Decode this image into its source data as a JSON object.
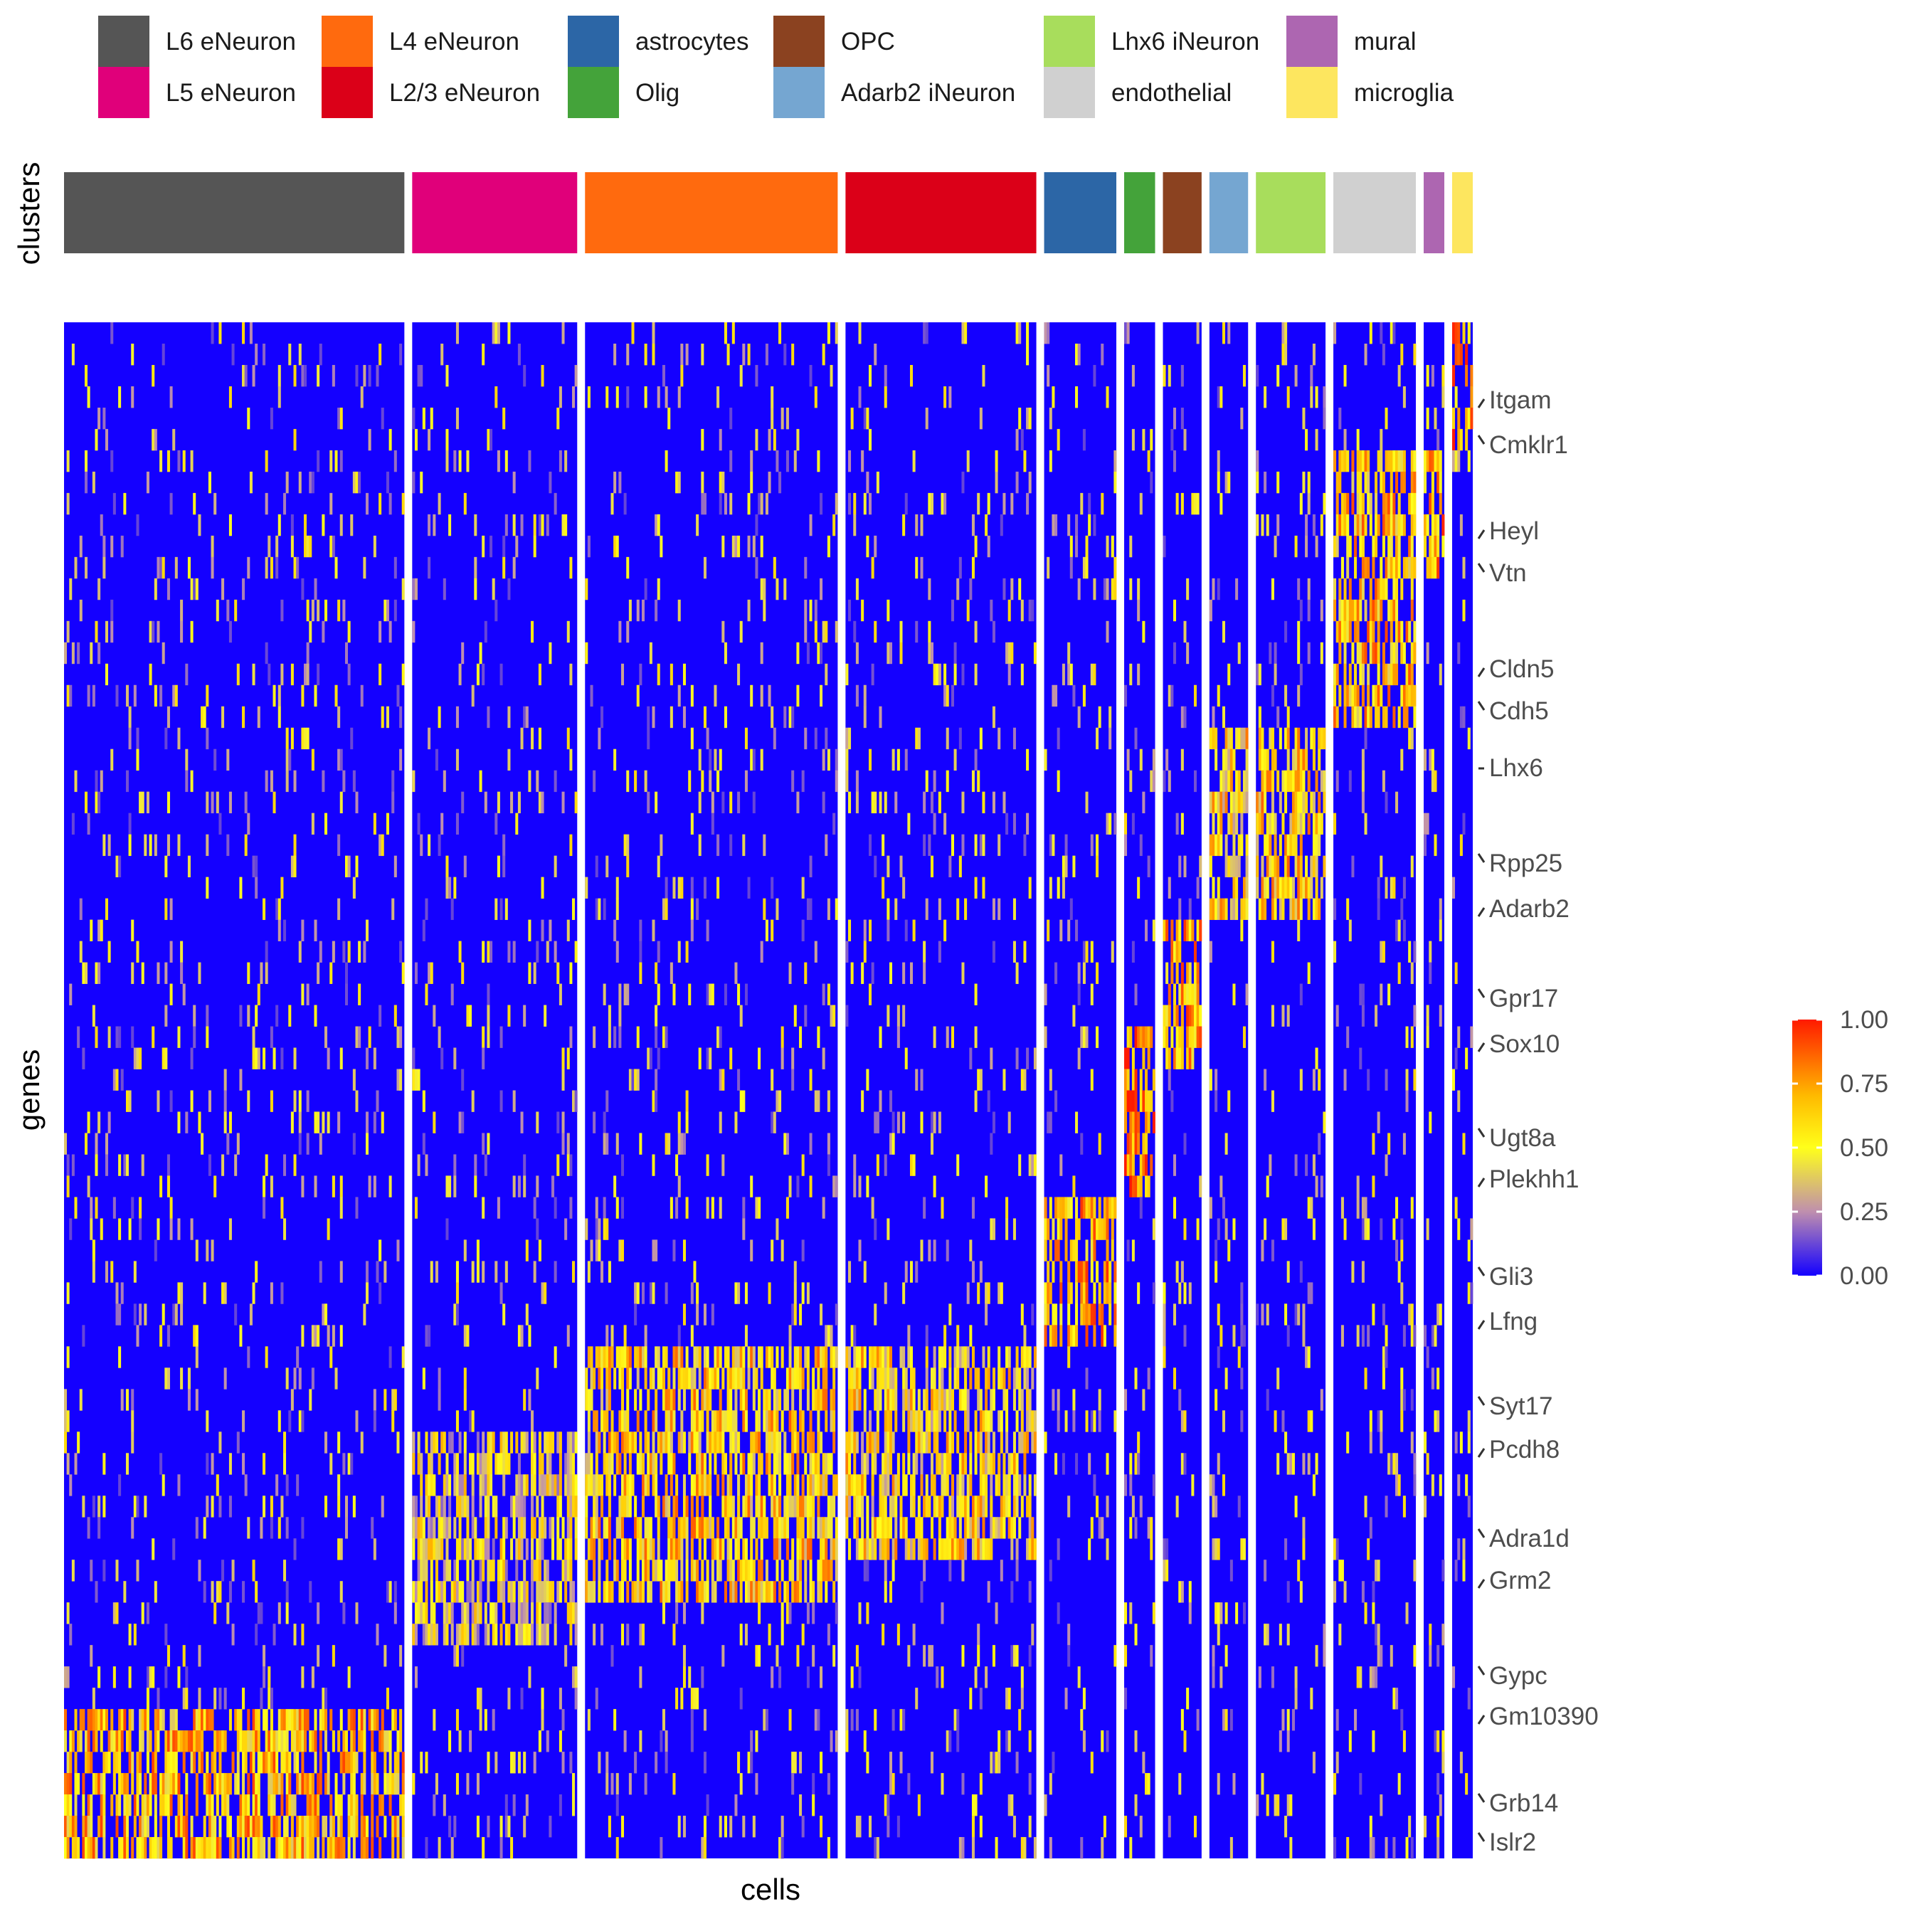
{
  "chart_data": {
    "type": "heatmap",
    "xlabel": "cells",
    "ylabel": "genes",
    "annotation_label": "clusters",
    "color_scale": {
      "range": [
        0.0,
        1.0
      ],
      "ticks": [
        "1.00",
        "0.75",
        "0.50",
        "0.25",
        "0.00"
      ],
      "stops": [
        "#1400ff",
        "#bf8fae",
        "#ffff1a",
        "#ffbb00",
        "#ff6a00",
        "#ff1a00"
      ]
    },
    "clusters": [
      {
        "name": "L6 eNeuron",
        "color": "#555555",
        "cells": 132
      },
      {
        "name": "L5 eNeuron",
        "color": "#e0007a",
        "cells": 64
      },
      {
        "name": "L4 eNeuron",
        "color": "#ff6a0e",
        "cells": 98
      },
      {
        "name": "L2/3 eNeuron",
        "color": "#db0018",
        "cells": 74
      },
      {
        "name": "astrocytes",
        "color": "#2c66a6",
        "cells": 28
      },
      {
        "name": "Olig",
        "color": "#44a33a",
        "cells": 12
      },
      {
        "name": "OPC",
        "color": "#8b4220",
        "cells": 15
      },
      {
        "name": "Adarb2 iNeuron",
        "color": "#75a6d1",
        "cells": 15
      },
      {
        "name": "Lhx6 iNeuron",
        "color": "#a8dd5c",
        "cells": 27
      },
      {
        "name": "endothelial",
        "color": "#d0d0d0",
        "cells": 32
      },
      {
        "name": "mural",
        "color": "#ad66b1",
        "cells": 8
      },
      {
        "name": "microglia",
        "color": "#fde65f",
        "cells": 8
      }
    ],
    "genes_labeled": [
      "Itgam",
      "Cmklr1",
      "Heyl",
      "Vtn",
      "Cldn5",
      "Cdh5",
      "Lhx6",
      "Rpp25",
      "Adarb2",
      "Gpr17",
      "Sox10",
      "Ugt8a",
      "Plekhh1",
      "Gli3",
      "Lfng",
      "Syt17",
      "Pcdh8",
      "Adra1d",
      "Grm2",
      "Gypc",
      "Gm10390",
      "Grb14",
      "Islr2"
    ],
    "gene_rows": 72,
    "marker_blocks": [
      {
        "cluster": "microglia",
        "row_range": [
          0,
          6
        ],
        "level": 0.75
      },
      {
        "cluster": "mural",
        "row_range": [
          6,
          12
        ],
        "level": 0.7
      },
      {
        "cluster": "endothelial",
        "row_range": [
          6,
          19
        ],
        "level": 0.65
      },
      {
        "cluster": "Lhx6 iNeuron",
        "row_range": [
          19,
          28
        ],
        "level": 0.6
      },
      {
        "cluster": "Adarb2 iNeuron",
        "row_range": [
          19,
          28
        ],
        "level": 0.55
      },
      {
        "cluster": "OPC",
        "row_range": [
          28,
          35
        ],
        "level": 0.7
      },
      {
        "cluster": "Olig",
        "row_range": [
          33,
          41
        ],
        "level": 0.8
      },
      {
        "cluster": "astrocytes",
        "row_range": [
          41,
          48
        ],
        "level": 0.7
      },
      {
        "cluster": "L4 eNeuron",
        "row_range": [
          48,
          60
        ],
        "level": 0.6
      },
      {
        "cluster": "L2/3 eNeuron",
        "row_range": [
          48,
          58
        ],
        "level": 0.55
      },
      {
        "cluster": "L5 eNeuron",
        "row_range": [
          52,
          62
        ],
        "level": 0.45
      },
      {
        "cluster": "L6 eNeuron",
        "row_range": [
          65,
          72
        ],
        "level": 0.65
      }
    ],
    "grid": false,
    "legend_position": "top"
  }
}
